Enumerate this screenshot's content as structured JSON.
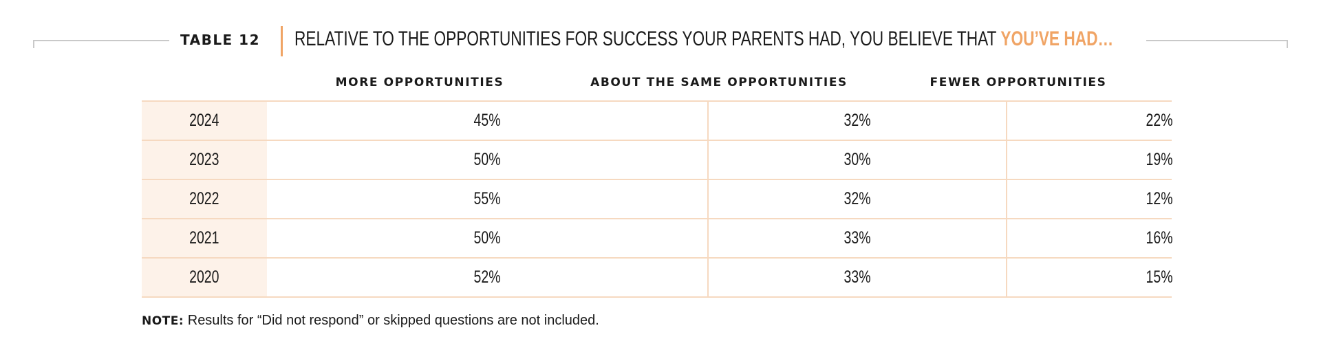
{
  "header": {
    "table_label": "TABLE 12",
    "title_main": "RELATIVE TO THE OPPORTUNITIES FOR SUCCESS YOUR PARENTS HAD, YOU BELIEVE THAT",
    "title_accent": "YOU’VE HAD…"
  },
  "colors": {
    "accent": "#f0a465",
    "row_border": "#f6d9c0",
    "year_background": "#fdf2e9",
    "text": "#1a1a1a"
  },
  "chart_data": {
    "type": "table",
    "title": "RELATIVE TO THE OPPORTUNITIES FOR SUCCESS YOUR PARENTS HAD, YOU BELIEVE THAT YOU’VE HAD…",
    "columns": [
      "MORE OPPORTUNITIES",
      "ABOUT THE SAME OPPORTUNITIES",
      "FEWER OPPORTUNITIES"
    ],
    "rows": [
      {
        "year": "2024",
        "values": [
          "45%",
          "32%",
          "22%"
        ]
      },
      {
        "year": "2023",
        "values": [
          "50%",
          "30%",
          "19%"
        ]
      },
      {
        "year": "2022",
        "values": [
          "55%",
          "32%",
          "12%"
        ]
      },
      {
        "year": "2021",
        "values": [
          "50%",
          "33%",
          "16%"
        ]
      },
      {
        "year": "2020",
        "values": [
          "52%",
          "33%",
          "15%"
        ]
      }
    ]
  },
  "note": {
    "label": "NOTE:",
    "text": " Results for “Did not respond” or skipped questions are not included."
  }
}
